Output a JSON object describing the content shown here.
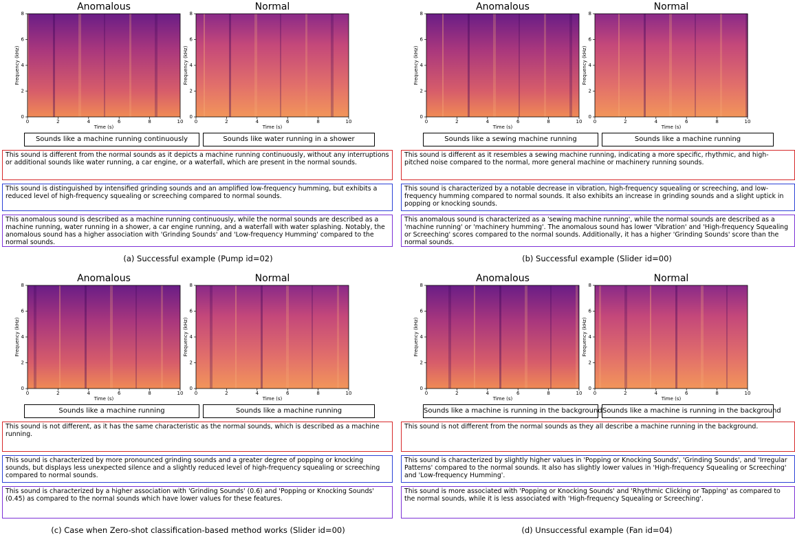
{
  "axes": {
    "xlabel": "Time (s)",
    "ylabel": "Frequency (kHz)",
    "xticks": [
      0,
      2,
      4,
      6,
      8,
      10
    ],
    "yticks": [
      0,
      2,
      4,
      6,
      8
    ]
  },
  "panels": [
    {
      "spectrograms": [
        {
          "title": "Anomalous"
        },
        {
          "title": "Normal"
        }
      ],
      "sounds": [
        "Sounds like a machine running continuously",
        "Sounds like water running in a shower"
      ],
      "explanations": [
        "This sound is different from the normal sounds as it depicts a machine running continuously, without any interruptions or additional sounds like water running, a car engine, or a waterfall, which are present in the normal sounds.",
        "This sound is distinguished by intensified grinding sounds and an amplified low-frequency humming, but exhibits a reduced level of high-frequency squealing or screeching compared to normal sounds.",
        "This anomalous sound is described as a machine running continuously, while the normal sounds are described as a machine running, water running in a shower, a car engine running, and a waterfall with water splashing. Notably, the anomalous sound has a higher association with 'Grinding Sounds' and 'Low-frequency Humming' compared to the normal sounds."
      ],
      "caption": "(a) Successful example (Pump id=02)"
    },
    {
      "spectrograms": [
        {
          "title": "Anomalous"
        },
        {
          "title": "Normal"
        }
      ],
      "sounds": [
        "Sounds like a sewing machine running",
        "Sounds like a machine running"
      ],
      "explanations": [
        "This sound is different as it resembles a sewing machine running, indicating a more specific, rhythmic, and high-pitched noise compared to the normal, more general machine or machinery running sounds.",
        "This sound is characterized by a notable decrease in vibration, high-frequency squealing or screeching, and low-frequency humming compared to normal sounds. It also exhibits an increase in grinding sounds and a slight uptick in popping or knocking sounds.",
        "This anomalous sound is characterized as a 'sewing machine running', while the normal sounds are described as a 'machine running' or 'machinery humming'. The anomalous sound has lower 'Vibration' and 'High-frequency Squealing or Screeching' scores compared to the normal sounds. Additionally, it has a higher 'Grinding Sounds' score than the normal sounds."
      ],
      "caption": "(b) Successful example (Slider id=00)"
    },
    {
      "spectrograms": [
        {
          "title": "Anomalous"
        },
        {
          "title": "Normal"
        }
      ],
      "sounds": [
        "Sounds like a machine running",
        "Sounds like a machine running"
      ],
      "explanations": [
        "This sound is not different, as it has the same characteristic as the normal sounds, which is described as a machine running.",
        "This sound is characterized by more pronounced grinding sounds and a greater degree of popping or knocking sounds, but displays less unexpected silence and a slightly reduced level of high-frequency squealing or screeching compared to normal sounds.",
        "This sound is characterized by a higher association with 'Grinding Sounds' (0.6) and 'Popping or Knocking Sounds' (0.45) as compared to the normal sounds which have lower values for these features."
      ],
      "caption": "(c) Case when Zero-shot classification-based method works (Slider id=00)"
    },
    {
      "spectrograms": [
        {
          "title": "Anomalous"
        },
        {
          "title": "Normal"
        }
      ],
      "sounds": [
        "Sounds like a machine is running in the background",
        "Sounds like a machine is running in the background"
      ],
      "explanations": [
        "This sound is not different from the normal sounds as they all describe a machine running in the background.",
        "This sound is characterized by slightly higher values in 'Popping or Knocking Sounds', 'Grinding Sounds', and 'Irregular Patterns' compared to the normal sounds. It also has slightly lower values in 'High-frequency Squealing or Screeching' and 'Low-frequency Humming'.",
        "This sound is more associated with 'Popping or Knocking Sounds' and 'Rhythmic Clicking or Tapping' as compared to the normal sounds, while it is less associated with 'High-frequency Squealing or Screeching'."
      ],
      "caption": "(d) Unsuccessful example (Fan id=04)"
    }
  ]
}
